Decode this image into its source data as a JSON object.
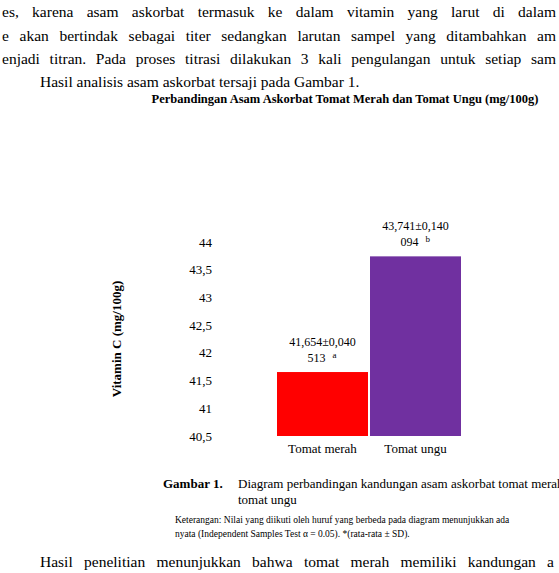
{
  "text_top": [
    "es, karena asam askorbat termasuk ke dalam vitamin yang larut di dalam",
    "e akan bertindak sebagai titer sedangkan larutan sampel yang ditambahkan am",
    "enjadi titran. Pada proses titrasi dilakukan 3 kali pengulangan untuk setiap sam",
    "Hasil analisis asam askorbat tersaji pada Gambar 1."
  ],
  "chart_data": {
    "type": "bar",
    "title": "Perbandingan Asam Askorbat Tomat Merah dan Tomat Ungu (mg/100g)",
    "y_label": "Vitamin C (mg/100g)",
    "categories": [
      "Tomat merah",
      "Tomat ungu"
    ],
    "values": [
      41.654,
      43.741
    ],
    "value_labels": [
      "41,654±0,040513",
      "43,741±0,140094"
    ],
    "annotations": [
      "a",
      "b"
    ],
    "colors": [
      "#ff0000",
      "#7030a0"
    ],
    "data_labels": true,
    "grid": false,
    "ylim": [
      40.5,
      44
    ],
    "yticks": [
      {
        "value": 40.5,
        "label": "40,5"
      },
      41,
      {
        "value": 41.5,
        "label": "41,5"
      },
      42,
      {
        "value": 42.5,
        "label": "42,5"
      },
      43,
      {
        "value": 43.5,
        "label": "43,5"
      },
      44
    ]
  },
  "caption": {
    "label": "Gambar 1.",
    "lines": [
      "Diagram perbandingan kandungan asam  askorbat tomat merah",
      "tomat ungu"
    ]
  },
  "note": [
    "Keterangan: Nilai yang diikuti oleh huruf yang berbeda pada diagram menunjukkan ada",
    "nyata (Independent Samples Test α = 0.05). *(rata-rata ± SD)."
  ],
  "text_bottom": [
    "Hasil penelitian menunjukkan bahwa tomat merah memiliki kandungan a"
  ]
}
